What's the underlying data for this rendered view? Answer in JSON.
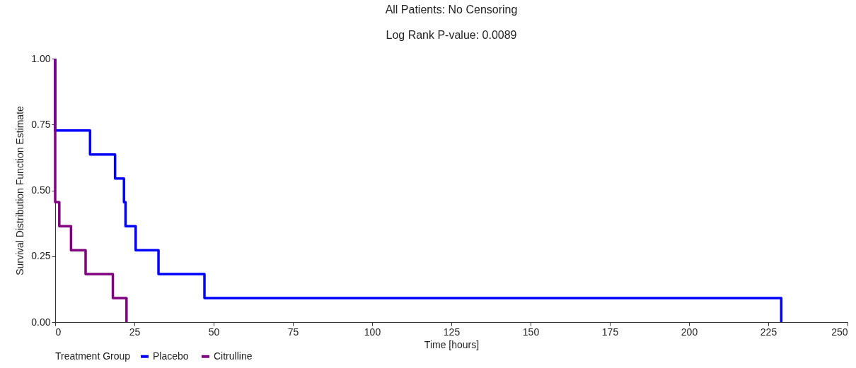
{
  "chart_data": {
    "type": "step",
    "title": "All Patients: No Censoring",
    "subtitle": "Log Rank P-value: 0.0089",
    "xlabel": "Time [hours]",
    "ylabel": "Survival Distribution Function Estimate",
    "legend_title": "Treatment Group",
    "series": [
      {
        "name": "Placebo",
        "color": "#0000ff",
        "x": [
          0,
          0,
          11,
          18.9,
          21.7,
          22.2,
          25.4,
          32.6,
          47.1,
          229.1
        ],
        "values": [
          1,
          0.727,
          0.636,
          0.545,
          0.455,
          0.364,
          0.273,
          0.182,
          0.091,
          0
        ]
      },
      {
        "name": "Citrulline",
        "color": "#800080",
        "x": [
          0,
          0,
          1.3,
          5,
          9.6,
          18.2,
          22.5
        ],
        "values": [
          1,
          0.455,
          0.364,
          0.273,
          0.182,
          0.091,
          0
        ]
      }
    ],
    "xlim": [
      0,
      250
    ],
    "xticks": [
      0,
      25,
      50,
      75,
      100,
      125,
      150,
      175,
      200,
      225,
      250
    ],
    "ylim": [
      0,
      1
    ],
    "yticks": [
      {
        "value": 0,
        "label": "0.00"
      },
      {
        "value": 0.25,
        "label": "0.25"
      },
      {
        "value": 0.5,
        "label": "0.50"
      },
      {
        "value": 0.75,
        "label": "0.75"
      },
      {
        "value": 1,
        "label": "1.00"
      }
    ],
    "grid": false,
    "legend": "bottom"
  }
}
